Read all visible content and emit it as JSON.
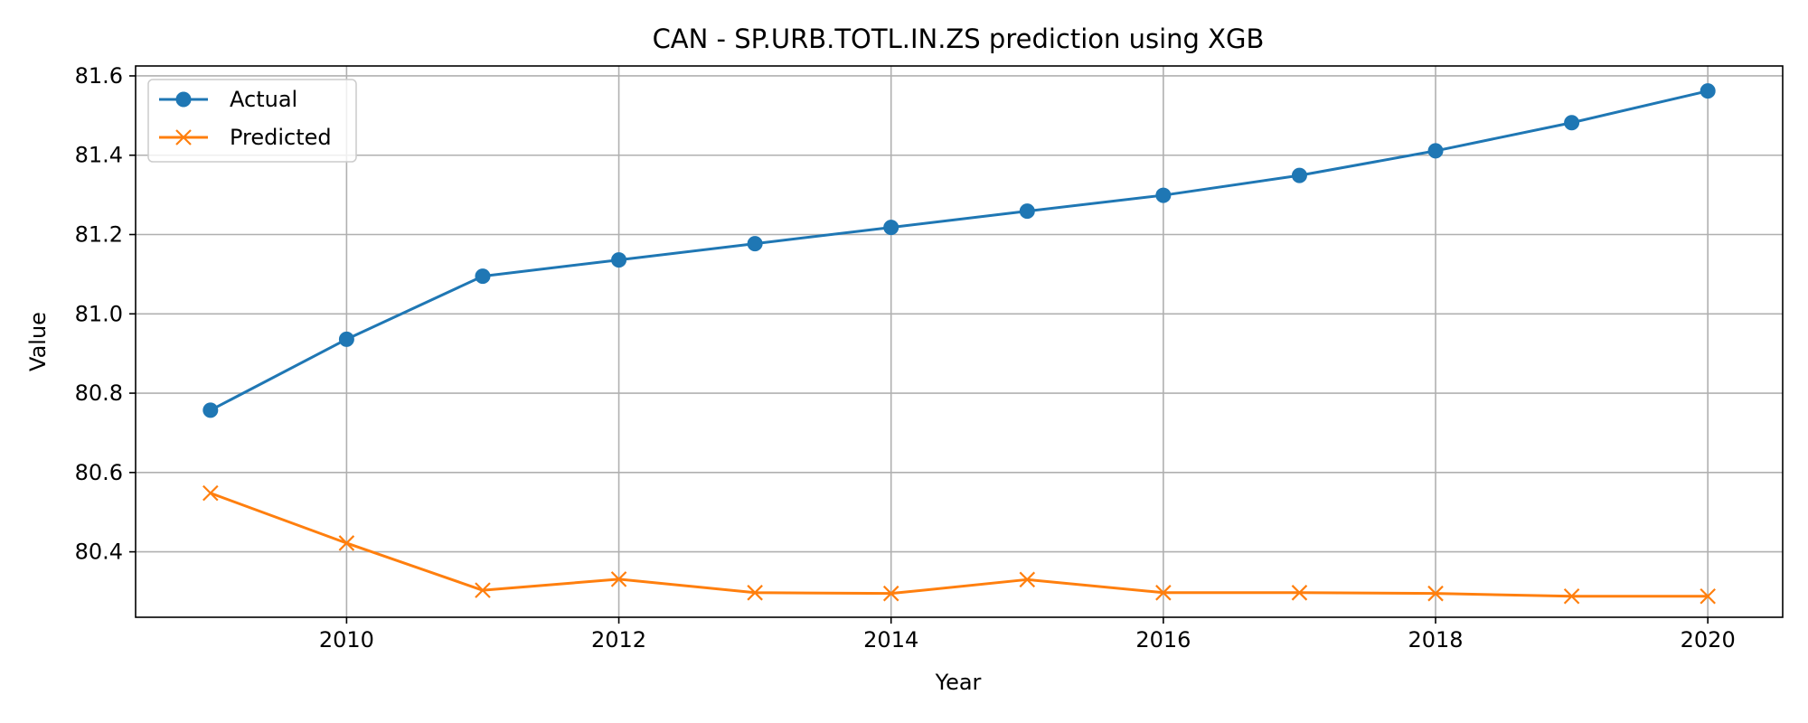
{
  "chart_data": {
    "type": "line",
    "title": "CAN - SP.URB.TOTL.IN.ZS prediction using XGB",
    "xlabel": "Year",
    "ylabel": "Value",
    "x": [
      2009,
      2010,
      2011,
      2012,
      2013,
      2014,
      2015,
      2016,
      2017,
      2018,
      2019,
      2020
    ],
    "xlim": [
      2008.45,
      2020.55
    ],
    "ylim": [
      80.235,
      81.625
    ],
    "xticks": [
      "2010",
      "2012",
      "2014",
      "2016",
      "2018",
      "2020"
    ],
    "yticks": [
      "80.4",
      "80.6",
      "80.8",
      "81.0",
      "81.2",
      "81.4",
      "81.6"
    ],
    "grid": true,
    "legend_position": "upper-left",
    "series": [
      {
        "name": "Actual",
        "color": "#1f77b4",
        "marker": "circle",
        "values": [
          80.757,
          80.936,
          81.095,
          81.136,
          81.177,
          81.218,
          81.259,
          81.299,
          81.349,
          81.411,
          81.482,
          81.562
        ]
      },
      {
        "name": "Predicted",
        "color": "#ff7f0e",
        "marker": "x",
        "values": [
          80.548,
          80.422,
          80.303,
          80.331,
          80.297,
          80.295,
          80.33,
          80.297,
          80.297,
          80.295,
          80.288,
          80.288
        ]
      }
    ]
  }
}
